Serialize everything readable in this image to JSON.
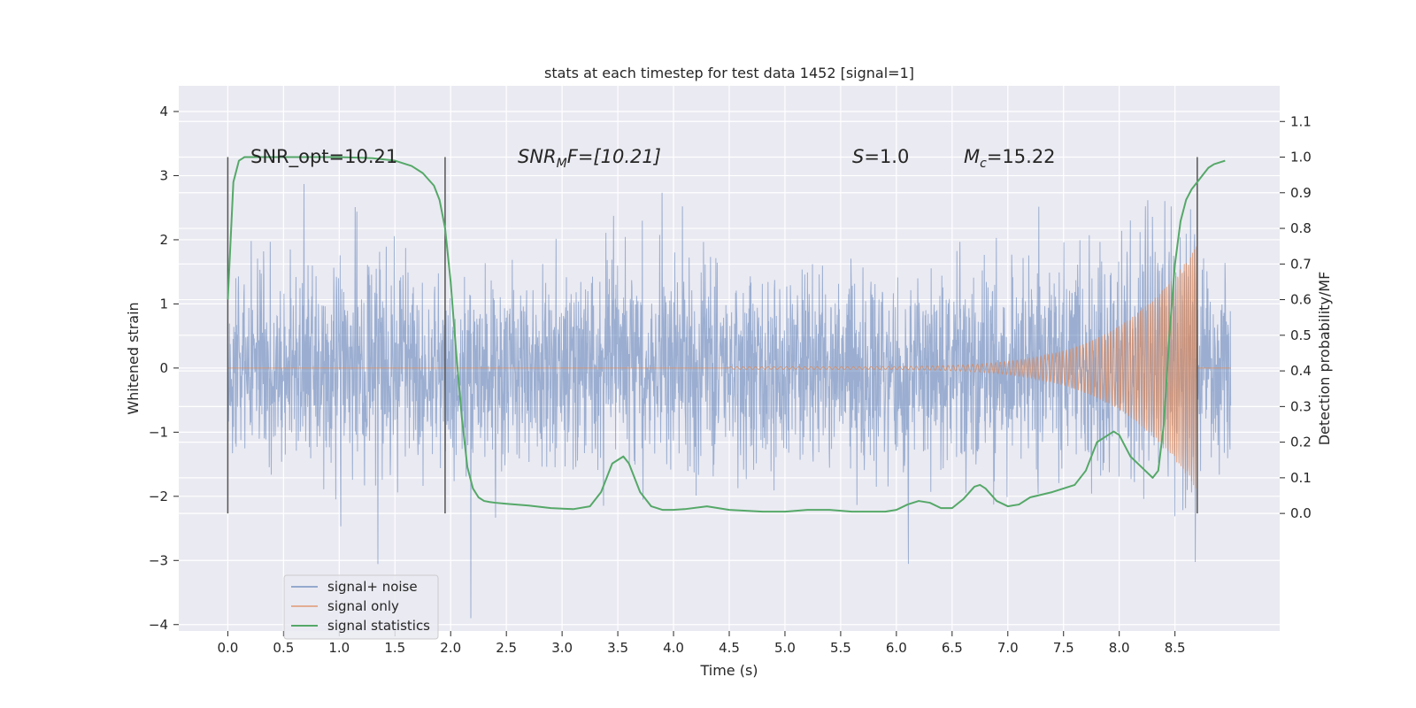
{
  "chart_data": {
    "type": "line",
    "title": "stats at each timestep for test data 1452 [signal=1]",
    "xlabel": "Time (s)",
    "ylabel": "Whitened strain",
    "y2label": "Detection probability/MF",
    "xlim": [
      -0.44,
      9.44
    ],
    "ylim": [
      -4.1,
      4.4
    ],
    "y2lim": [
      -0.33,
      1.2
    ],
    "xticks": [
      "0.0",
      "0.5",
      "1.0",
      "1.5",
      "2.0",
      "2.5",
      "3.0",
      "3.5",
      "4.0",
      "4.5",
      "5.0",
      "5.5",
      "6.0",
      "6.5",
      "7.0",
      "7.5",
      "8.0",
      "8.5"
    ],
    "yticks": [
      "4",
      "3",
      "2",
      "1",
      "0",
      "−1",
      "−2",
      "−3",
      "−4"
    ],
    "y2ticks": [
      "1.1",
      "1.0",
      "0.9",
      "0.8",
      "0.7",
      "0.6",
      "0.5",
      "0.4",
      "0.3",
      "0.2",
      "0.1",
      "0.0"
    ],
    "annotations": {
      "snr_opt": "SNR_opt=10.21",
      "snr_mf_sym": "SNR",
      "snr_mf_sub": "M",
      "snr_mf_rest": "F=[10.21]",
      "s_sym": "S",
      "s_rest": "=1.0",
      "mc_sym": "M",
      "mc_sub": "c",
      "mc_rest": "=15.22"
    },
    "segment_markers": [
      0.0,
      1.95,
      8.7
    ],
    "series": [
      {
        "name": "signal+ noise",
        "color": "#4c72b0",
        "description": "whitened strain noise, amplitude ~ ±2.5 with spikes to ±4"
      },
      {
        "name": "signal only",
        "color": "#dd8452",
        "chirp_start": 4.5,
        "chirp_end": 8.7,
        "peak_amplitude": 1.9
      },
      {
        "name": "signal statistics",
        "color": "#55a868",
        "x": [
          0.0,
          0.05,
          0.1,
          0.15,
          0.2,
          0.3,
          0.5,
          1.0,
          1.3,
          1.5,
          1.65,
          1.75,
          1.85,
          1.9,
          1.95,
          2.0,
          2.05,
          2.1,
          2.15,
          2.2,
          2.25,
          2.3,
          2.35,
          2.4,
          2.5,
          2.7,
          2.9,
          3.1,
          3.25,
          3.35,
          3.45,
          3.55,
          3.6,
          3.7,
          3.8,
          3.9,
          4.0,
          4.1,
          4.3,
          4.5,
          4.8,
          5.0,
          5.2,
          5.4,
          5.6,
          5.8,
          5.9,
          6.0,
          6.1,
          6.2,
          6.3,
          6.4,
          6.5,
          6.6,
          6.7,
          6.75,
          6.8,
          6.9,
          7.0,
          7.1,
          7.2,
          7.4,
          7.6,
          7.7,
          7.8,
          7.9,
          7.95,
          8.0,
          8.1,
          8.2,
          8.3,
          8.35,
          8.4,
          8.45,
          8.5,
          8.55,
          8.6,
          8.65,
          8.7,
          8.75,
          8.8,
          8.85,
          8.9,
          8.95
        ],
        "values": [
          0.6,
          0.93,
          0.99,
          1.0,
          1.0,
          1.0,
          1.0,
          1.0,
          0.997,
          0.99,
          0.975,
          0.955,
          0.92,
          0.88,
          0.8,
          0.65,
          0.45,
          0.27,
          0.13,
          0.07,
          0.045,
          0.035,
          0.032,
          0.03,
          0.027,
          0.022,
          0.015,
          0.012,
          0.02,
          0.06,
          0.14,
          0.16,
          0.14,
          0.06,
          0.02,
          0.01,
          0.01,
          0.012,
          0.02,
          0.01,
          0.005,
          0.005,
          0.01,
          0.01,
          0.005,
          0.005,
          0.005,
          0.01,
          0.025,
          0.035,
          0.03,
          0.015,
          0.015,
          0.04,
          0.075,
          0.08,
          0.07,
          0.035,
          0.02,
          0.025,
          0.045,
          0.06,
          0.08,
          0.12,
          0.2,
          0.22,
          0.23,
          0.22,
          0.16,
          0.13,
          0.1,
          0.12,
          0.25,
          0.5,
          0.7,
          0.82,
          0.88,
          0.91,
          0.93,
          0.95,
          0.97,
          0.98,
          0.985,
          0.99
        ]
      }
    ],
    "legend_position": "lower-left"
  }
}
